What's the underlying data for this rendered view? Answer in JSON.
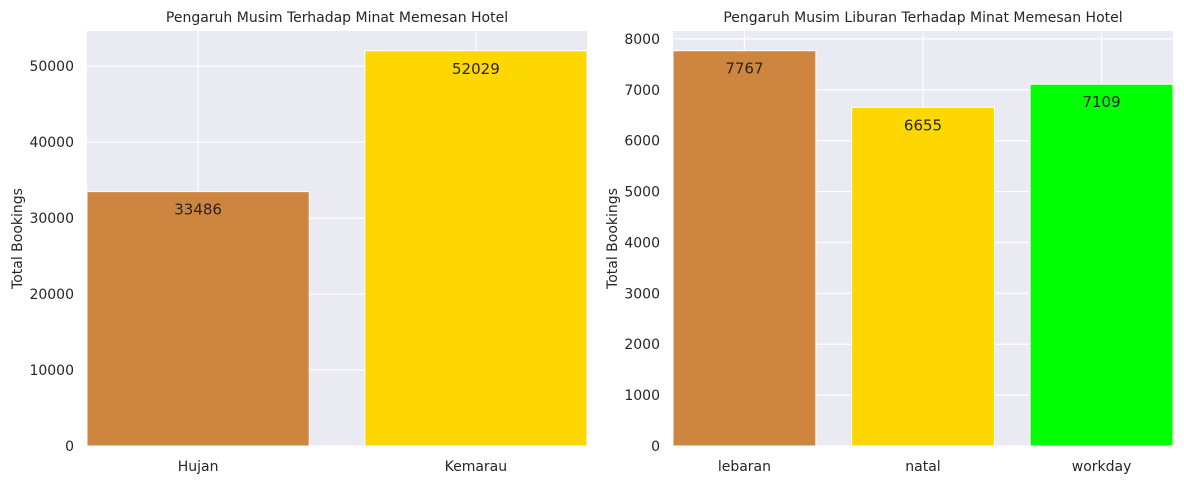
{
  "chart_data": [
    {
      "type": "bar",
      "title": "Pengaruh Musim Terhadap Minat Memesan Hotel",
      "xlabel": "",
      "ylabel": "Total Bookings",
      "categories": [
        "Hujan",
        "Kemarau"
      ],
      "values": [
        33486,
        52029
      ],
      "colors": [
        "#cd853f",
        "#ffd700"
      ],
      "ylim": [
        0,
        54630
      ],
      "yticks": [
        0,
        10000,
        20000,
        30000,
        40000,
        50000
      ],
      "grid": true,
      "background": "#eaeaf2"
    },
    {
      "type": "bar",
      "title": "Pengaruh Musim Liburan Terhadap Minat Memesan Hotel",
      "xlabel": "",
      "ylabel": "Total Bookings",
      "categories": [
        "lebaran",
        "natal",
        "workday"
      ],
      "values": [
        7767,
        6655,
        7109
      ],
      "colors": [
        "#cd853f",
        "#ffd700",
        "#00ff00"
      ],
      "ylim": [
        0,
        8155
      ],
      "yticks": [
        0,
        1000,
        2000,
        3000,
        4000,
        5000,
        6000,
        7000,
        8000
      ],
      "grid": true,
      "background": "#eaeaf2"
    }
  ]
}
